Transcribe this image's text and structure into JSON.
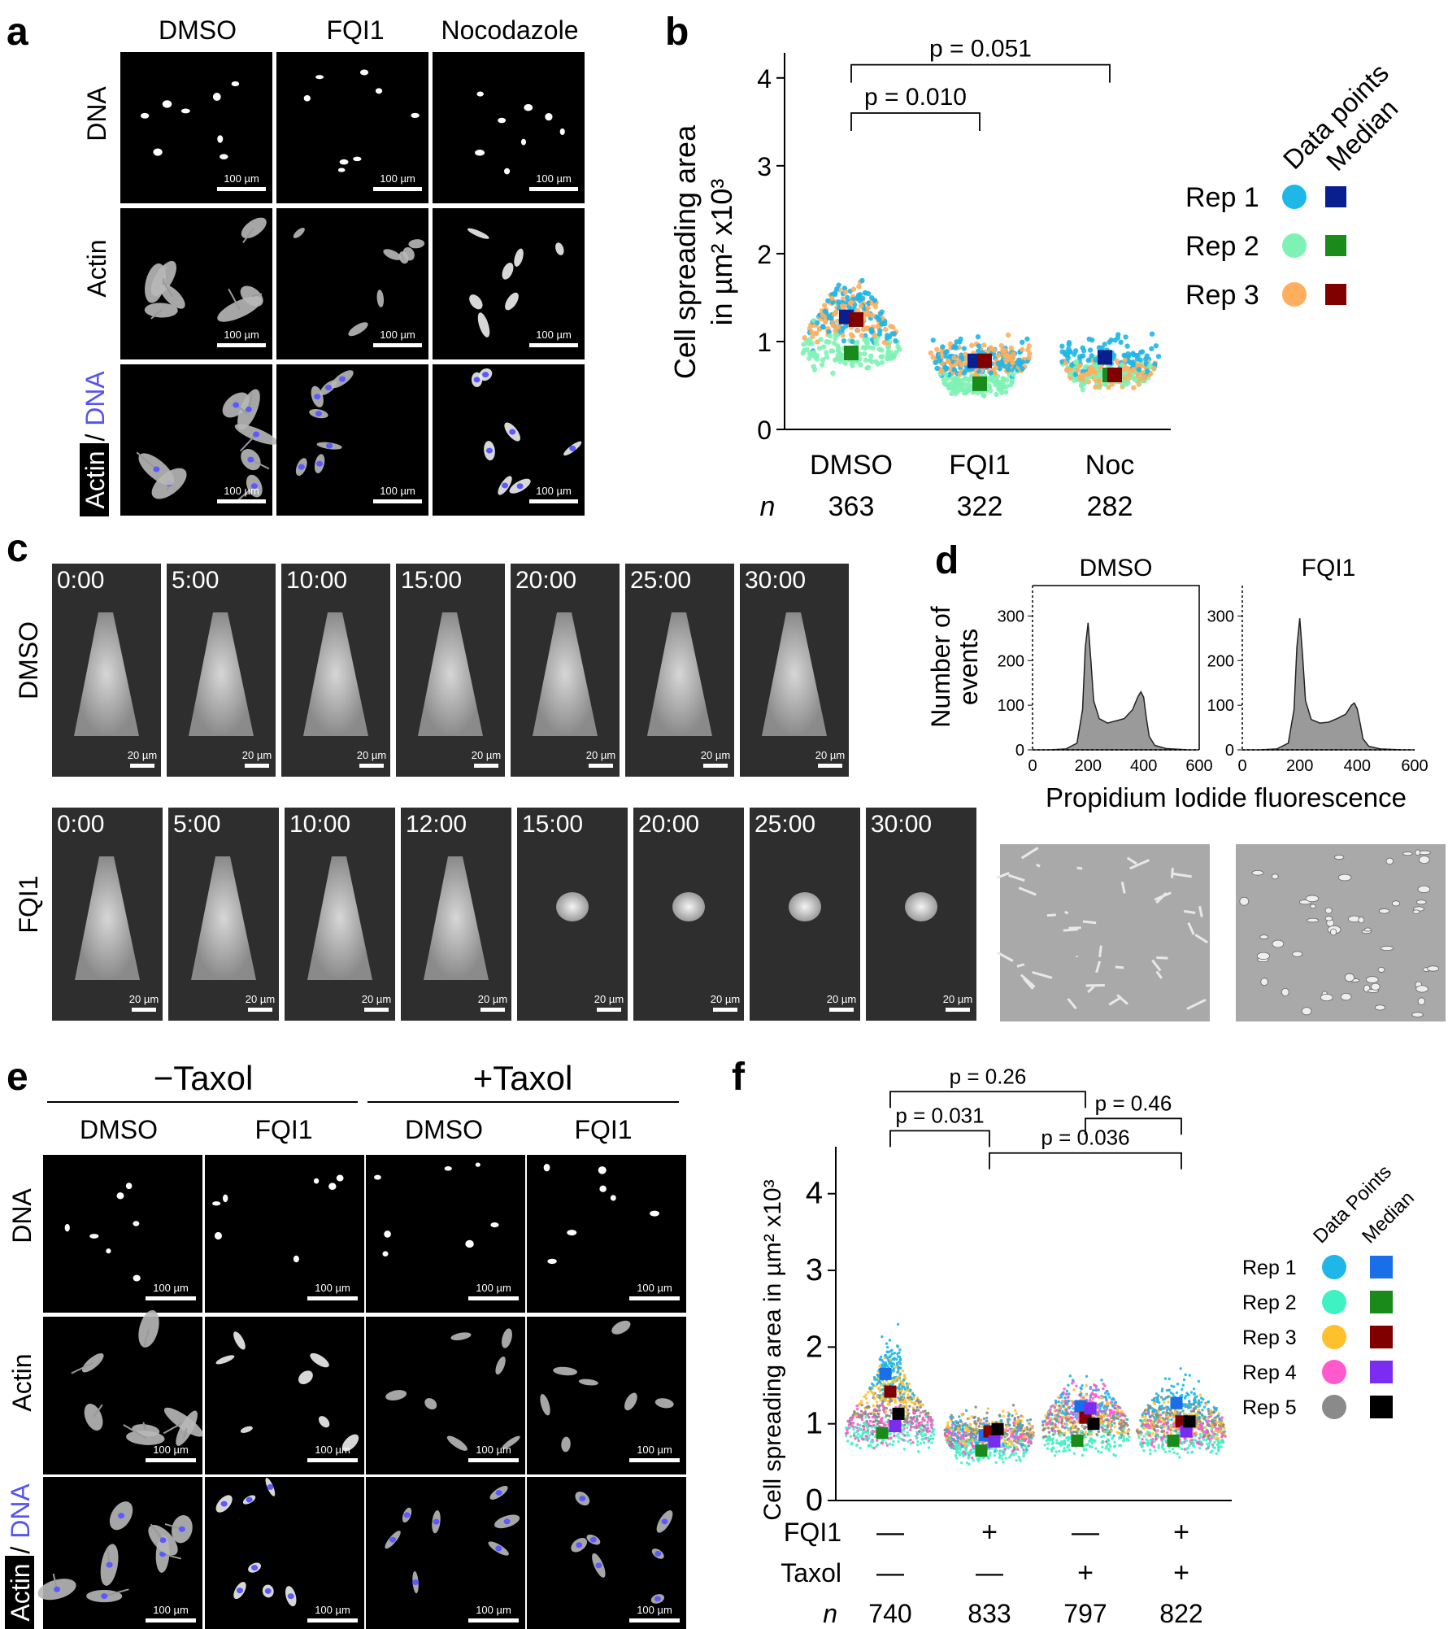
{
  "panel_letters": {
    "a": "a",
    "b": "b",
    "c": "c",
    "d": "d",
    "e": "e",
    "f": "f"
  },
  "scale_bar_100": "100 µm",
  "scale_bar_20": "20 µm",
  "panel_a": {
    "columns": [
      "DMSO",
      "FQI1",
      "Nocodazole"
    ],
    "rows": {
      "dna": "DNA",
      "actin": "Actin",
      "merge_actin": "Actin",
      "merge_slash": "/",
      "merge_dna": "DNA"
    }
  },
  "panel_c": {
    "dmso_label": "DMSO",
    "fqi1_label": "FQI1",
    "dmso_times": [
      "0:00",
      "5:00",
      "10:00",
      "15:00",
      "20:00",
      "25:00",
      "30:00"
    ],
    "fqi1_times": [
      "0:00",
      "5:00",
      "10:00",
      "12:00",
      "15:00",
      "20:00",
      "25:00",
      "30:00"
    ]
  },
  "panel_d": {
    "titles": [
      "DMSO",
      "FQI1"
    ],
    "ylabel_line1": "Number of",
    "ylabel_line2": "events",
    "xlabel": "Propidium Iodide fluorescence",
    "yticks": [
      "0",
      "100",
      "200",
      "300"
    ],
    "xticks": [
      "0",
      "200",
      "400",
      "600"
    ]
  },
  "panel_e": {
    "minus_taxol": "−Taxol",
    "plus_taxol": "+Taxol",
    "columns": [
      "DMSO",
      "FQI1",
      "DMSO",
      "FQI1"
    ],
    "rows": {
      "dna": "DNA",
      "actin": "Actin",
      "merge_actin": "Actin",
      "merge_slash": "/",
      "merge_dna": "DNA"
    }
  },
  "chart_data": [
    {
      "id": "b",
      "type": "scatter",
      "title": "",
      "ylabel_line1": "Cell spreading area",
      "ylabel_line2": "in µm² x10³",
      "ylim": [
        0,
        4
      ],
      "yticks": [
        "0",
        "1",
        "2",
        "3",
        "4"
      ],
      "categories": [
        "DMSO",
        "FQI1",
        "Noc"
      ],
      "n_label": "n",
      "n": [
        "363",
        "322",
        "282"
      ],
      "legend_headers": [
        "Data points",
        "Median"
      ],
      "series": [
        {
          "name": "Rep 1",
          "point_color": "#1FB6E8",
          "median_color": "#0A1F8F",
          "medians": [
            1.28,
            0.78,
            0.82
          ]
        },
        {
          "name": "Rep 2",
          "point_color": "#7EF2B4",
          "median_color": "#1A8A1A",
          "medians": [
            0.87,
            0.52,
            0.62
          ]
        },
        {
          "name": "Rep 3",
          "point_color": "#FFAE5E",
          "median_color": "#800000",
          "medians": [
            1.25,
            0.78,
            0.62
          ]
        }
      ],
      "comparisons": [
        {
          "from": "DMSO",
          "to": "FQI1",
          "label": "p = 0.010",
          "y": 3.6
        },
        {
          "from": "DMSO",
          "to": "Noc",
          "label": "p = 0.051",
          "y": 4.15
        }
      ]
    },
    {
      "id": "f",
      "type": "scatter",
      "ylabel": "Cell spreading area in µm² x10³",
      "ylim": [
        0,
        4.5
      ],
      "yticks": [
        "0",
        "1",
        "2",
        "3",
        "4"
      ],
      "row_labels": [
        "FQI1",
        "Taxol"
      ],
      "fqi1": [
        "—",
        "+",
        "—",
        "+"
      ],
      "taxol": [
        "—",
        "—",
        "+",
        "+"
      ],
      "n_label": "n",
      "n": [
        "740",
        "833",
        "797",
        "822"
      ],
      "legend_headers": [
        "Data Points",
        "Median"
      ],
      "series": [
        {
          "name": "Rep 1",
          "point_color": "#1FB6E8",
          "median_color": "#1A6FE8",
          "medians": [
            1.65,
            0.85,
            1.23,
            1.27
          ]
        },
        {
          "name": "Rep 2",
          "point_color": "#3FF2C4",
          "median_color": "#1A8A1A",
          "medians": [
            0.88,
            0.65,
            0.78,
            0.78
          ]
        },
        {
          "name": "Rep 3",
          "point_color": "#FFC02E",
          "median_color": "#800000",
          "medians": [
            1.42,
            0.9,
            1.08,
            1.03
          ]
        },
        {
          "name": "Rep 4",
          "point_color": "#FF5ACD",
          "median_color": "#7A2CF0",
          "medians": [
            0.97,
            0.77,
            1.2,
            0.9
          ]
        },
        {
          "name": "Rep 5",
          "point_color": "#8A8A8A",
          "median_color": "#000000",
          "medians": [
            1.13,
            0.93,
            1.0,
            1.03
          ]
        }
      ],
      "comparisons": [
        {
          "from": 0,
          "to": 1,
          "label": "p = 0.031",
          "y": 4.82
        },
        {
          "from": 0,
          "to": 2,
          "label": "p = 0.26",
          "y": 5.33
        },
        {
          "from": 1,
          "to": 3,
          "label": "p = 0.036",
          "y": 4.53
        },
        {
          "from": 2,
          "to": 3,
          "label": "p = 0.46",
          "y": 4.98
        }
      ]
    }
  ],
  "histogram_d": {
    "x": [
      0,
      60,
      120,
      160,
      180,
      190,
      200,
      210,
      220,
      240,
      270,
      300,
      330,
      360,
      380,
      390,
      400,
      410,
      420,
      440,
      480,
      560,
      600
    ],
    "dmso": [
      0,
      0,
      2,
      15,
      90,
      230,
      285,
      200,
      110,
      70,
      60,
      65,
      70,
      90,
      120,
      130,
      118,
      70,
      30,
      10,
      3,
      0,
      0
    ],
    "fqi1": [
      0,
      0,
      2,
      15,
      90,
      230,
      295,
      210,
      110,
      68,
      60,
      62,
      70,
      80,
      100,
      105,
      92,
      60,
      25,
      8,
      2,
      0,
      0
    ]
  }
}
